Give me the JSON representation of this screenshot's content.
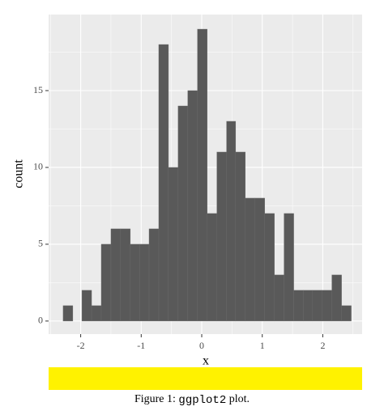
{
  "chart_data": {
    "type": "histogram",
    "x_label": "x",
    "y_label": "count",
    "bins": [
      -2.29,
      -2.13,
      -1.98,
      -1.82,
      -1.66,
      -1.5,
      -1.34,
      -1.18,
      -1.02,
      -0.87,
      -0.71,
      -0.55,
      -0.39,
      -0.23,
      -0.07,
      0.09,
      0.25,
      0.41,
      0.56,
      0.72,
      0.88,
      1.04,
      1.2,
      1.36,
      1.52,
      1.68,
      1.83,
      1.99,
      2.15,
      2.31,
      2.47
    ],
    "values": [
      1,
      0,
      2,
      1,
      5,
      6,
      6,
      5,
      5,
      6,
      18,
      10,
      14,
      15,
      19,
      7,
      11,
      13,
      11,
      8,
      8,
      7,
      3,
      7,
      2,
      2,
      2,
      2,
      3,
      1
    ],
    "color": "#595959",
    "xlim": [
      -2.53,
      2.65
    ],
    "ylim": [
      -0.85,
      19.95
    ],
    "xticks": [
      -2,
      -1,
      0,
      1,
      2
    ],
    "yticks": [
      0,
      5,
      10,
      15
    ],
    "grid": true
  },
  "caption": {
    "label": "Figure 1:",
    "code": "ggplot2",
    "text": "plot."
  }
}
